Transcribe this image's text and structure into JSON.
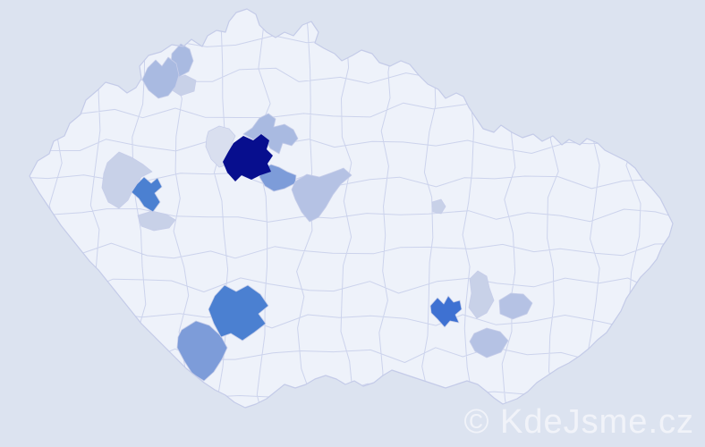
{
  "map": {
    "watermark": "© KdeJsme.cz",
    "colors": {
      "sea": "#dce3f0",
      "land": "#eef2fa",
      "district_border": "#ccd3ec",
      "country_border": "#c4cbe8",
      "watermark_text": "#f3f5fa"
    },
    "palette": {
      "navy": "#070e8e",
      "blue_vivid": "#3e71d2",
      "blue": "#4b80d1",
      "blue_soft": "#7d9cd9",
      "periwinkle": "#a9bae1",
      "periwinkle_soft": "#b5c2e4",
      "gray_blue": "#c8d1e8",
      "gray_soft": "#d9dfef"
    },
    "districts": [
      {
        "id": "capital-center",
        "shade": "navy"
      },
      {
        "id": "center-northeast-of-capital",
        "shade": "periwinkle"
      },
      {
        "id": "center-west-of-capital",
        "shade": "gray_soft"
      },
      {
        "id": "center-southeast-of-capital-small",
        "shade": "blue_soft"
      },
      {
        "id": "center-southeast-of-capital-large",
        "shade": "periwinkle_soft"
      },
      {
        "id": "northwest-upper",
        "shade": "periwinkle"
      },
      {
        "id": "northwest-lower",
        "shade": "periwinkle"
      },
      {
        "id": "northwest-inland",
        "shade": "gray_blue"
      },
      {
        "id": "west-city",
        "shade": "blue"
      },
      {
        "id": "west-northwest-area",
        "shade": "gray_blue"
      },
      {
        "id": "west-south-area",
        "shade": "gray_blue"
      },
      {
        "id": "south-city",
        "shade": "blue"
      },
      {
        "id": "south-southwest-area",
        "shade": "blue_soft"
      },
      {
        "id": "central-east-small",
        "shade": "gray_blue"
      },
      {
        "id": "southeast-city",
        "shade": "blue_vivid"
      },
      {
        "id": "southeast-north-area",
        "shade": "gray_blue"
      },
      {
        "id": "southeast-east-area",
        "shade": "periwinkle_soft"
      },
      {
        "id": "southeast-south-area",
        "shade": "periwinkle_soft"
      }
    ]
  }
}
